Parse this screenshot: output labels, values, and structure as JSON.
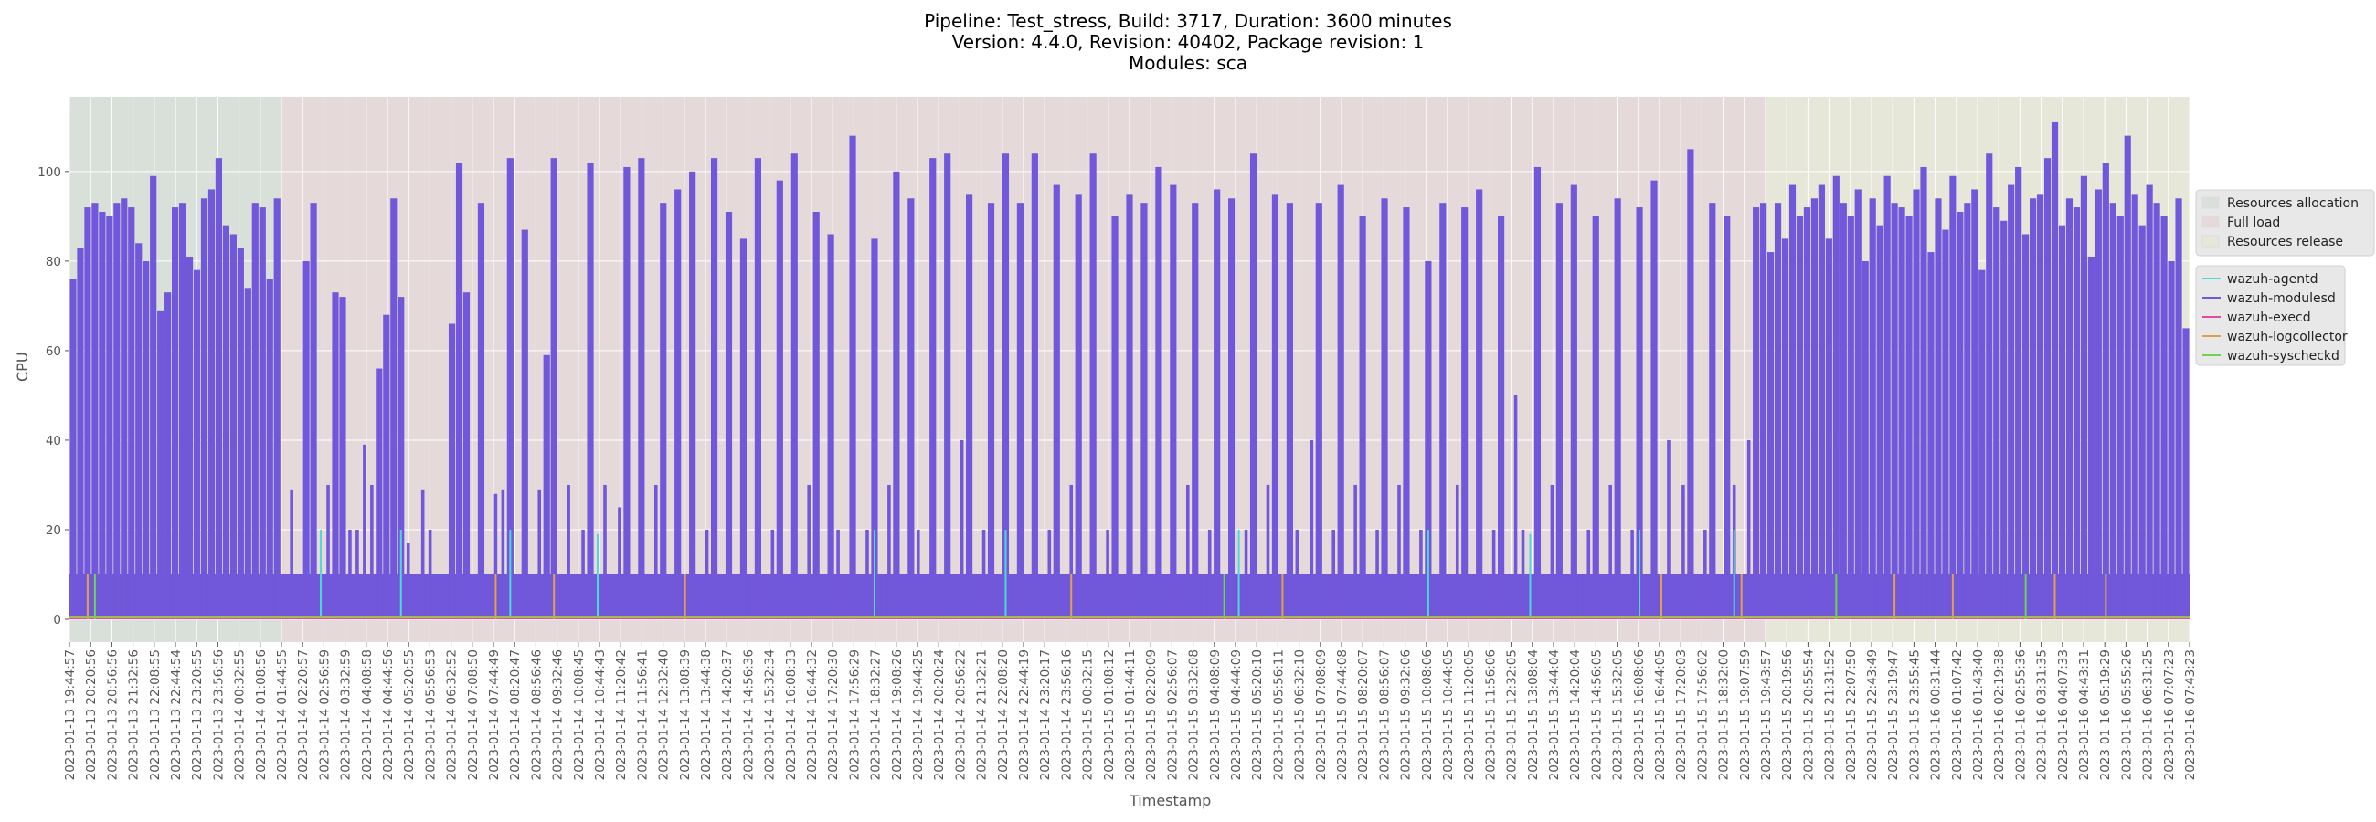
{
  "chart_data": {
    "type": "line",
    "title": [
      "Pipeline: Test_stress, Build: 3717, Duration: 3600 minutes",
      "Version: 4.4.0, Revision: 40402, Package revision: 1",
      "Modules: sca"
    ],
    "xlabel": "Timestamp",
    "ylabel": "CPU",
    "ylim": [
      -5.1,
      116.7
    ],
    "yticks": [
      "0",
      "20",
      "40",
      "60",
      "80",
      "100"
    ],
    "grid": true,
    "legend_placement": "right",
    "xticks": [
      "2023-01-13 19:44:57",
      "2023-01-13 20:20:56",
      "2023-01-13 20:56:56",
      "2023-01-13 21:32:56",
      "2023-01-13 22:08:55",
      "2023-01-13 22:44:54",
      "2023-01-13 23:20:55",
      "2023-01-13 23:56:56",
      "2023-01-14 00:32:55",
      "2023-01-14 01:08:56",
      "2023-01-14 01:44:55",
      "2023-01-14 02:20:57",
      "2023-01-14 02:56:59",
      "2023-01-14 03:32:59",
      "2023-01-14 04:08:58",
      "2023-01-14 04:44:56",
      "2023-01-14 05:20:55",
      "2023-01-14 05:56:53",
      "2023-01-14 06:32:52",
      "2023-01-14 07:08:50",
      "2023-01-14 07:44:49",
      "2023-01-14 08:20:47",
      "2023-01-14 08:56:46",
      "2023-01-14 09:32:46",
      "2023-01-14 10:08:45",
      "2023-01-14 10:44:43",
      "2023-01-14 11:20:42",
      "2023-01-14 11:56:41",
      "2023-01-14 12:32:40",
      "2023-01-14 13:08:39",
      "2023-01-14 13:44:38",
      "2023-01-14 14:20:37",
      "2023-01-14 14:56:36",
      "2023-01-14 15:32:34",
      "2023-01-14 16:08:33",
      "2023-01-14 16:44:32",
      "2023-01-14 17:20:30",
      "2023-01-14 17:56:29",
      "2023-01-14 18:32:27",
      "2023-01-14 19:08:26",
      "2023-01-14 19:44:25",
      "2023-01-14 20:20:24",
      "2023-01-14 20:56:22",
      "2023-01-14 21:32:21",
      "2023-01-14 22:08:20",
      "2023-01-14 22:44:19",
      "2023-01-14 23:20:17",
      "2023-01-14 23:56:16",
      "2023-01-15 00:32:15",
      "2023-01-15 01:08:12",
      "2023-01-15 01:44:11",
      "2023-01-15 02:20:09",
      "2023-01-15 02:56:07",
      "2023-01-15 03:32:08",
      "2023-01-15 04:08:09",
      "2023-01-15 04:44:09",
      "2023-01-15 05:20:10",
      "2023-01-15 05:56:11",
      "2023-01-15 06:32:10",
      "2023-01-15 07:08:09",
      "2023-01-15 07:44:08",
      "2023-01-15 08:20:07",
      "2023-01-15 08:56:07",
      "2023-01-15 09:32:06",
      "2023-01-15 10:08:06",
      "2023-01-15 10:44:05",
      "2023-01-15 11:20:05",
      "2023-01-15 11:56:06",
      "2023-01-15 12:32:05",
      "2023-01-15 13:08:04",
      "2023-01-15 13:44:04",
      "2023-01-15 14:20:04",
      "2023-01-15 14:56:05",
      "2023-01-15 15:32:05",
      "2023-01-15 16:08:06",
      "2023-01-15 16:44:05",
      "2023-01-15 17:20:03",
      "2023-01-15 17:56:02",
      "2023-01-15 18:32:00",
      "2023-01-15 19:07:59",
      "2023-01-15 19:43:57",
      "2023-01-15 20:19:56",
      "2023-01-15 20:55:54",
      "2023-01-15 21:31:52",
      "2023-01-15 22:07:50",
      "2023-01-15 22:43:49",
      "2023-01-15 23:19:47",
      "2023-01-15 23:55:45",
      "2023-01-16 00:31:44",
      "2023-01-16 01:07:42",
      "2023-01-16 01:43:40",
      "2023-01-16 02:19:38",
      "2023-01-16 02:55:36",
      "2023-01-16 03:31:35",
      "2023-01-16 04:07:33",
      "2023-01-16 04:43:31",
      "2023-01-16 05:19:29",
      "2023-01-16 05:55:26",
      "2023-01-16 06:31:25",
      "2023-01-16 07:07:23",
      "2023-01-16 07:43:23"
    ],
    "phases": [
      {
        "name": "Resources allocation",
        "start_tick": 0,
        "end_tick": 10,
        "color": "#d9e0d9"
      },
      {
        "name": "Full load",
        "start_tick": 10,
        "end_tick": 80,
        "color": "#e5d9da"
      },
      {
        "name": "Resources release",
        "start_tick": 80,
        "end_tick": 100,
        "color": "#e6e6d9"
      }
    ],
    "series": [
      {
        "name": "wazuh-agentd",
        "color": "#4fd8d8",
        "baseline": 0.3,
        "spikes": [
          [
            34,
            20
          ],
          [
            45,
            20
          ],
          [
            60,
            20
          ],
          [
            72,
            19
          ],
          [
            110,
            20
          ],
          [
            128,
            20
          ],
          [
            160,
            20
          ],
          [
            186,
            20
          ],
          [
            200,
            19
          ],
          [
            215,
            20
          ],
          [
            228,
            20
          ]
        ]
      },
      {
        "name": "wazuh-modulesd",
        "color": "#7157d9",
        "baseline": 10,
        "values": [
          76,
          83,
          92,
          93,
          91,
          90,
          93,
          94,
          92,
          84,
          80,
          99,
          69,
          73,
          92,
          93,
          81,
          78,
          94,
          96,
          103,
          88,
          86,
          83,
          74,
          93,
          92,
          76,
          94,
          10,
          29,
          10,
          80,
          93,
          10,
          30,
          73,
          72,
          20,
          20,
          39,
          30,
          56,
          68,
          94,
          72,
          17,
          10,
          29,
          20,
          10,
          10,
          66,
          102,
          73,
          10,
          93,
          10,
          28,
          29,
          103,
          10,
          87,
          10,
          29,
          59,
          103,
          10,
          30,
          10,
          20,
          102,
          10,
          30,
          10,
          25,
          101,
          10,
          103,
          10,
          30,
          93,
          10,
          96,
          10,
          100,
          10,
          20,
          103,
          10,
          91,
          10,
          85,
          10,
          103,
          10,
          20,
          98,
          10,
          104,
          10,
          30,
          91,
          10,
          86,
          20,
          10,
          108,
          10,
          20,
          85,
          10,
          30,
          100,
          10,
          94,
          20,
          10,
          103,
          10,
          104,
          10,
          40,
          95,
          10,
          20,
          93,
          10,
          104,
          10,
          93,
          10,
          104,
          10,
          20,
          97,
          10,
          30,
          95,
          10,
          104,
          10,
          20,
          90,
          10,
          95,
          10,
          93,
          10,
          101,
          10,
          97,
          10,
          30,
          93,
          10,
          20,
          96,
          10,
          94,
          10,
          20,
          104,
          10,
          30,
          95,
          10,
          93,
          20,
          10,
          40,
          93,
          10,
          20,
          97,
          10,
          30,
          90,
          10,
          20,
          94,
          10,
          30,
          92,
          10,
          20,
          80,
          10,
          93,
          10,
          30,
          92,
          10,
          96,
          10,
          20,
          90,
          10,
          50,
          20,
          10,
          101,
          10,
          30,
          93,
          10,
          97,
          10,
          20,
          90,
          10,
          30,
          94,
          10,
          20,
          92,
          10,
          98,
          10,
          40,
          10,
          30,
          105,
          10,
          20,
          93,
          10,
          90,
          30,
          10,
          40,
          92,
          93,
          82,
          93,
          85,
          97,
          90,
          92,
          94,
          97,
          85,
          99,
          93,
          90,
          96,
          80,
          94,
          88,
          99,
          93,
          92,
          90,
          96,
          101,
          82,
          94,
          87,
          99,
          91,
          93,
          96,
          78,
          104,
          92,
          89,
          97,
          101,
          86,
          94,
          95,
          103,
          111,
          88,
          94,
          92,
          99,
          81,
          96,
          102,
          93,
          90,
          108,
          95,
          88,
          97,
          93,
          90,
          80,
          94,
          65
        ]
      },
      {
        "name": "wazuh-execd",
        "color": "#e24aa5",
        "baseline": 0.2,
        "spikes": []
      },
      {
        "name": "wazuh-logcollector",
        "color": "#e0a050",
        "baseline": 0.4,
        "spikes": [
          [
            2,
            10
          ],
          [
            58,
            10
          ],
          [
            66,
            10
          ],
          [
            84,
            10
          ],
          [
            137,
            10
          ],
          [
            166,
            10
          ],
          [
            218,
            10
          ],
          [
            229,
            10
          ],
          [
            250,
            10
          ],
          [
            258,
            10
          ],
          [
            272,
            10
          ],
          [
            279,
            10
          ]
        ]
      },
      {
        "name": "wazuh-syscheckd",
        "color": "#6ed34e",
        "baseline": 0.6,
        "spikes": [
          [
            3,
            10
          ],
          [
            158,
            10
          ],
          [
            242,
            10
          ],
          [
            268,
            10
          ]
        ]
      }
    ]
  }
}
